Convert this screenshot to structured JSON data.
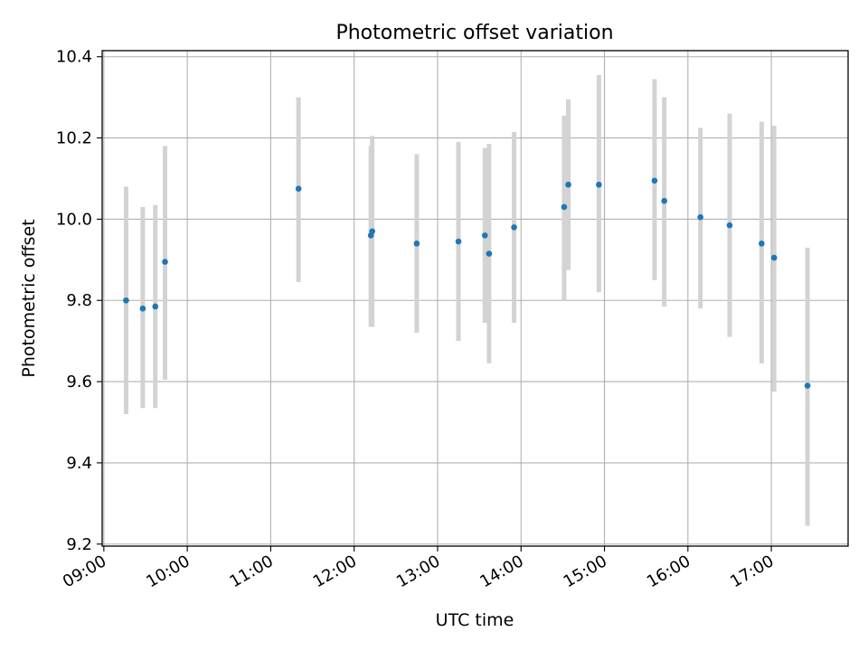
{
  "chart_data": {
    "type": "scatter",
    "title": "Photometric offset variation",
    "xlabel": "UTC time",
    "ylabel": "Photometric offset",
    "grid": true,
    "xlim": [
      8.98,
      17.92
    ],
    "ylim": [
      9.195,
      10.415
    ],
    "x_tick_values": [
      9,
      10,
      11,
      12,
      13,
      14,
      15,
      16,
      17
    ],
    "x_tick_labels": [
      "09:00",
      "10:00",
      "11:00",
      "12:00",
      "13:00",
      "14:00",
      "15:00",
      "16:00",
      "17:00"
    ],
    "y_tick_values": [
      9.2,
      9.4,
      9.6,
      9.8,
      10.0,
      10.2,
      10.4
    ],
    "y_tick_labels": [
      "9.2",
      "9.4",
      "9.6",
      "9.8",
      "10.0",
      "10.2",
      "10.4"
    ],
    "point_color": "#1f77b4",
    "errorbar_color": "#d3d3d3",
    "points": [
      {
        "x": "09:16",
        "y": 9.8,
        "ylow": 9.52,
        "yhigh": 10.08
      },
      {
        "x": "09:28",
        "y": 9.78,
        "ylow": 9.535,
        "yhigh": 10.03
      },
      {
        "x": "09:37",
        "y": 9.785,
        "ylow": 9.535,
        "yhigh": 10.035
      },
      {
        "x": "09:44",
        "y": 9.895,
        "ylow": 9.605,
        "yhigh": 10.18
      },
      {
        "x": "11:20",
        "y": 10.075,
        "ylow": 9.845,
        "yhigh": 10.3
      },
      {
        "x": "12:12",
        "y": 9.96,
        "ylow": 9.735,
        "yhigh": 10.18
      },
      {
        "x": "12:13",
        "y": 9.97,
        "ylow": 9.735,
        "yhigh": 10.205
      },
      {
        "x": "12:45",
        "y": 9.94,
        "ylow": 9.72,
        "yhigh": 10.16
      },
      {
        "x": "13:15",
        "y": 9.945,
        "ylow": 9.7,
        "yhigh": 10.19
      },
      {
        "x": "13:34",
        "y": 9.96,
        "ylow": 9.745,
        "yhigh": 10.175
      },
      {
        "x": "13:37",
        "y": 9.915,
        "ylow": 9.645,
        "yhigh": 10.185
      },
      {
        "x": "13:55",
        "y": 9.98,
        "ylow": 9.745,
        "yhigh": 10.215
      },
      {
        "x": "14:31",
        "y": 10.03,
        "ylow": 9.8,
        "yhigh": 10.255
      },
      {
        "x": "14:34",
        "y": 10.085,
        "ylow": 9.875,
        "yhigh": 10.295
      },
      {
        "x": "14:56",
        "y": 10.085,
        "ylow": 9.82,
        "yhigh": 10.355
      },
      {
        "x": "15:36",
        "y": 10.095,
        "ylow": 9.85,
        "yhigh": 10.345
      },
      {
        "x": "15:43",
        "y": 10.045,
        "ylow": 9.785,
        "yhigh": 10.3
      },
      {
        "x": "16:09",
        "y": 10.005,
        "ylow": 9.78,
        "yhigh": 10.225
      },
      {
        "x": "16:30",
        "y": 9.985,
        "ylow": 9.71,
        "yhigh": 10.26
      },
      {
        "x": "16:53",
        "y": 9.94,
        "ylow": 9.645,
        "yhigh": 10.24
      },
      {
        "x": "17:02",
        "y": 9.905,
        "ylow": 9.575,
        "yhigh": 10.23
      },
      {
        "x": "17:26",
        "y": 9.59,
        "ylow": 9.245,
        "yhigh": 9.93
      }
    ]
  }
}
